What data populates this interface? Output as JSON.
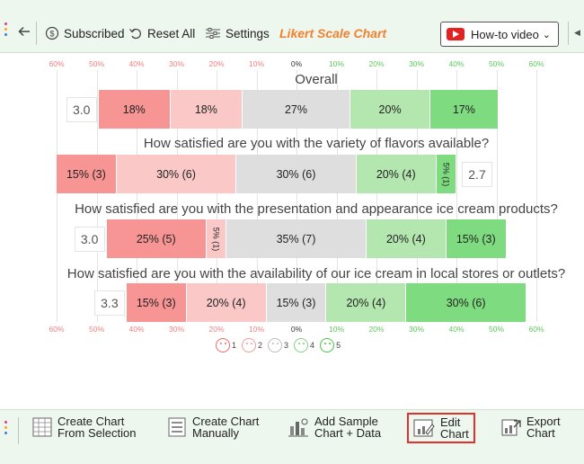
{
  "toolbar": {
    "subscribed": "Subscribed",
    "reset_all": "Reset All",
    "settings": "Settings",
    "title": "Likert Scale Chart",
    "howto": "How-to video"
  },
  "chart_data": {
    "type": "bar",
    "axis_ticks_top": [
      "60%",
      "50%",
      "40%",
      "30%",
      "20%",
      "10%",
      "0%",
      "10%",
      "20%",
      "30%",
      "40%",
      "50%",
      "60%"
    ],
    "axis_ticks_bottom": [
      "60%",
      "50%",
      "40%",
      "30%",
      "20%",
      "10%",
      "0%",
      "10%",
      "20%",
      "30%",
      "40%",
      "50%",
      "60%"
    ],
    "rows": [
      {
        "question": "Overall",
        "average": "3.0",
        "values": [
          18,
          18,
          27,
          20,
          17
        ],
        "labels": [
          "18%",
          "18%",
          "27%",
          "20%",
          "17%"
        ]
      },
      {
        "question": "How satisfied are you with the variety of flavors available?",
        "average": "2.7",
        "values": [
          15,
          30,
          30,
          20,
          5
        ],
        "labels": [
          "15% (3)",
          "30% (6)",
          "30% (6)",
          "20% (4)",
          "5% (1)"
        ]
      },
      {
        "question": "How satisfied are you with the presentation and appearance ice cream products?",
        "average": "3.0",
        "values": [
          25,
          5,
          35,
          20,
          15
        ],
        "labels": [
          "25% (5)",
          "5% (1)",
          "35% (7)",
          "20% (4)",
          "15% (3)"
        ]
      },
      {
        "question": "How satisfied are you with the availability of our ice cream in local stores or outlets?",
        "average": "3.3",
        "values": [
          15,
          20,
          15,
          20,
          30
        ],
        "labels": [
          "15% (3)",
          "20% (4)",
          "15% (3)",
          "20% (4)",
          "30% (6)"
        ]
      }
    ],
    "legend": [
      "1",
      "2",
      "3",
      "4",
      "5"
    ],
    "colors": [
      "#f79494",
      "#fbc8c8",
      "#dedede",
      "#b4e6b0",
      "#7fdb7f"
    ]
  },
  "bottom": {
    "create_selection": [
      "Create Chart",
      "From Selection"
    ],
    "create_manual": [
      "Create Chart",
      "Manually"
    ],
    "add_sample": [
      "Add Sample",
      "Chart + Data"
    ],
    "edit_chart": [
      "Edit",
      "Chart"
    ],
    "export_chart": [
      "Export",
      "Chart"
    ]
  }
}
